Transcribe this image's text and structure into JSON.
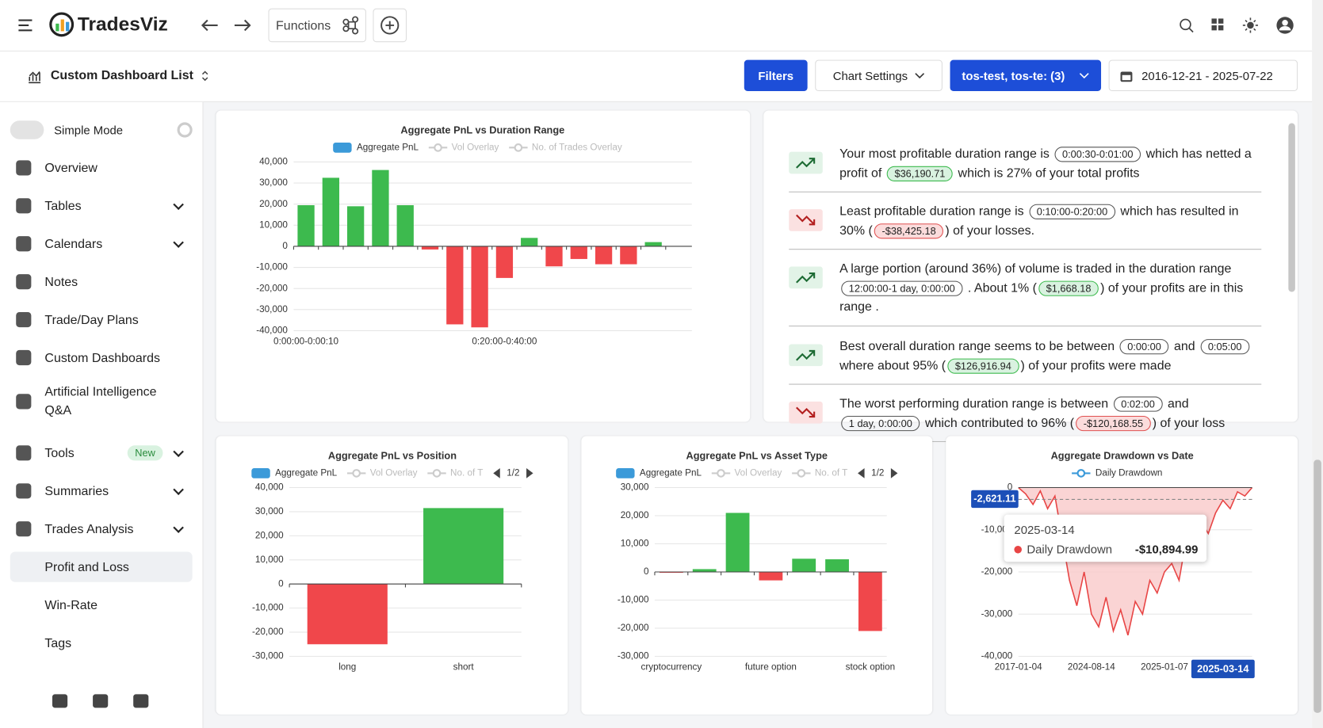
{
  "header": {
    "brand": "TradesViz",
    "functions": "Functions"
  },
  "toolbar": {
    "dashboard_list": "Custom Dashboard List",
    "filters": "Filters",
    "chart_settings": "Chart Settings",
    "accounts": "tos-test, tos-te: (3)",
    "date_range": "2016-12-21 - 2025-07-22"
  },
  "sidebar": {
    "simple_mode": "Simple Mode",
    "items": [
      {
        "label": "Overview"
      },
      {
        "label": "Tables",
        "expand": true
      },
      {
        "label": "Calendars",
        "expand": true
      },
      {
        "label": "Notes"
      },
      {
        "label": "Trade/Day Plans"
      },
      {
        "label": "Custom Dashboards"
      },
      {
        "label": "Artificial Intelligence Q&A"
      },
      {
        "label": "Tools",
        "badge": "New",
        "expand": true
      },
      {
        "label": "Summaries",
        "expand": true
      },
      {
        "label": "Trades Analysis",
        "expand": true
      },
      {
        "label": "Profit and Loss",
        "sub": true,
        "active": true
      },
      {
        "label": "Win-Rate",
        "sub": true
      },
      {
        "label": "Tags",
        "sub": true
      }
    ]
  },
  "insights": [
    {
      "trend": "up",
      "parts": [
        {
          "text": "Your most profitable duration range is "
        },
        {
          "chip": "0:00:30-0:01:00",
          "tone": "plain"
        },
        {
          "text": " which has netted a profit of "
        },
        {
          "chip": "$36,190.71",
          "tone": "green"
        },
        {
          "text": " which is 27% of your total profits"
        }
      ]
    },
    {
      "trend": "down",
      "parts": [
        {
          "text": "Least profitable duration range is "
        },
        {
          "chip": "0:10:00-0:20:00",
          "tone": "plain"
        },
        {
          "text": " which has resulted in 30% ("
        },
        {
          "chip": "-$38,425.18",
          "tone": "red"
        },
        {
          "text": ") of your losses."
        }
      ]
    },
    {
      "trend": "up",
      "parts": [
        {
          "text": "A large portion (around 36%) of volume is traded in the duration range "
        },
        {
          "chip": "12:00:00-1 day, 0:00:00",
          "tone": "plain"
        },
        {
          "text": " . About 1% ("
        },
        {
          "chip": "$1,668.18",
          "tone": "green"
        },
        {
          "text": ") of your profits are in this range ."
        }
      ]
    },
    {
      "trend": "up",
      "parts": [
        {
          "text": "Best overall duration range seems to be between "
        },
        {
          "chip": "0:00:00",
          "tone": "plain"
        },
        {
          "text": " and "
        },
        {
          "chip": "0:05:00",
          "tone": "plain"
        },
        {
          "text": " where about 95% ("
        },
        {
          "chip": "$126,916.94",
          "tone": "green"
        },
        {
          "text": ") of your profits were made"
        }
      ]
    },
    {
      "trend": "down",
      "parts": [
        {
          "text": "The worst performing duration range is between "
        },
        {
          "chip": "0:02:00",
          "tone": "plain"
        },
        {
          "text": " and "
        },
        {
          "chip": "1 day, 0:00:00",
          "tone": "plain"
        },
        {
          "text": " which contributed to 96% ("
        },
        {
          "chip": "-$120,168.55",
          "tone": "red"
        },
        {
          "text": ") of your loss"
        }
      ]
    }
  ],
  "chart_data": [
    {
      "type": "bar",
      "title": "Aggregate PnL vs Duration Range",
      "categories": [
        "0:00:00-0:00:10",
        null,
        null,
        null,
        null,
        null,
        null,
        null,
        "0:20:00-0:40:00",
        null,
        null,
        null,
        null,
        null,
        null
      ],
      "series": [
        {
          "name": "Aggregate PnL",
          "color": "#3b9ad9",
          "values": [
            19500,
            32500,
            19000,
            36190.71,
            19500,
            -1500,
            -37000,
            -38425.18,
            -15000,
            4000,
            -9500,
            -6000,
            -8500,
            -8500,
            2000
          ]
        }
      ],
      "legend_extra": [
        "Vol Overlay",
        "No. of Trades Overlay"
      ],
      "bar_colors": {
        "positive": "#3dba4e",
        "negative": "#f0474b"
      },
      "ylim": [
        -40000,
        40000
      ],
      "yticks": [
        {
          "value": -40000,
          "label": "-40,000"
        },
        {
          "value": -30000,
          "label": "-30,000"
        },
        {
          "value": -20000,
          "label": "-20,000"
        },
        {
          "value": -10000,
          "label": "-10,000"
        },
        0,
        {
          "value": 10000,
          "label": "10,000"
        },
        {
          "value": 20000,
          "label": "20,000"
        },
        {
          "value": 30000,
          "label": "30,000"
        },
        {
          "value": 40000,
          "label": "40,000"
        }
      ],
      "grid": true
    },
    {
      "type": "bar",
      "title": "Aggregate PnL vs Position",
      "categories": [
        "long",
        "short"
      ],
      "series": [
        {
          "name": "Aggregate PnL",
          "color": "#3b9ad9",
          "values": [
            -25000,
            31500
          ]
        }
      ],
      "legend_extra": [
        "Vol Overlay",
        "No. of T"
      ],
      "pager": "1/2",
      "bar_colors": {
        "positive": "#3dba4e",
        "negative": "#f0474b"
      },
      "ylim": [
        -30000,
        40000
      ],
      "yticks": [
        {
          "value": -30000,
          "label": "-30,000"
        },
        {
          "value": -20000,
          "label": "-20,000"
        },
        {
          "value": -10000,
          "label": "-10,000"
        },
        0,
        {
          "value": 10000,
          "label": "10,000"
        },
        {
          "value": 20000,
          "label": "20,000"
        },
        {
          "value": 30000,
          "label": "30,000"
        },
        {
          "value": 40000,
          "label": "40,000"
        }
      ],
      "grid": true
    },
    {
      "type": "bar",
      "title": "Aggregate PnL vs Asset Type",
      "categories": [
        "cryptocurrency",
        null,
        null,
        "future option",
        null,
        null,
        "stock option"
      ],
      "series": [
        {
          "name": "Aggregate PnL",
          "color": "#3b9ad9",
          "values": [
            -300,
            1000,
            21000,
            -3000,
            4700,
            4500,
            -21000
          ]
        }
      ],
      "legend_extra": [
        "Vol Overlay",
        "No. of T"
      ],
      "pager": "1/2",
      "bar_colors": {
        "positive": "#3dba4e",
        "negative": "#f0474b"
      },
      "ylim": [
        -30000,
        30000
      ],
      "yticks": [
        {
          "value": -30000,
          "label": "-30,000"
        },
        {
          "value": -20000,
          "label": "-20,000"
        },
        {
          "value": -10000,
          "label": "-10,000"
        },
        0,
        {
          "value": 10000,
          "label": "10,000"
        },
        {
          "value": 20000,
          "label": "20,000"
        },
        {
          "value": 30000,
          "label": "30,000"
        }
      ],
      "grid": true
    },
    {
      "type": "line",
      "title": "Aggregate Drawdown vs Date",
      "categories": [
        "2017-01-04",
        null,
        null,
        null,
        null,
        null,
        null,
        null,
        null,
        null,
        "2024-08-14",
        null,
        null,
        null,
        null,
        null,
        null,
        null,
        null,
        null,
        "2025-01-07",
        null,
        null,
        null,
        null,
        null,
        null,
        null,
        null,
        null,
        null,
        null,
        null
      ],
      "series": [
        {
          "name": "Daily Drawdown",
          "color": "#e84545",
          "values": [
            0,
            -1500,
            -4000,
            -800,
            -5000,
            -2000,
            -12000,
            -22000,
            -28000,
            -20000,
            -30000,
            -33000,
            -26000,
            -34000,
            -29000,
            -35000,
            -27000,
            -30000,
            -22000,
            -25000,
            -20000,
            -18000,
            -22000,
            -12000,
            -15000,
            -8000,
            -10894.99,
            -6000,
            -3000,
            -5000,
            -1000,
            -2000,
            0
          ]
        }
      ],
      "ylim": [
        -40000,
        0
      ],
      "yticks": [
        {
          "value": -40000,
          "label": "-40,000"
        },
        {
          "value": -30000,
          "label": "-30,000"
        },
        {
          "value": -20000,
          "label": "-20,000"
        },
        {
          "value": -10000,
          "label": "-10,000"
        },
        0
      ],
      "grid": true,
      "tooltip": {
        "date": "2025-03-14",
        "series": "Daily Drawdown",
        "value": "-$10,894.99",
        "crosshair_y": "-2,621.11",
        "crosshair_x": "2025-03-14"
      }
    }
  ]
}
